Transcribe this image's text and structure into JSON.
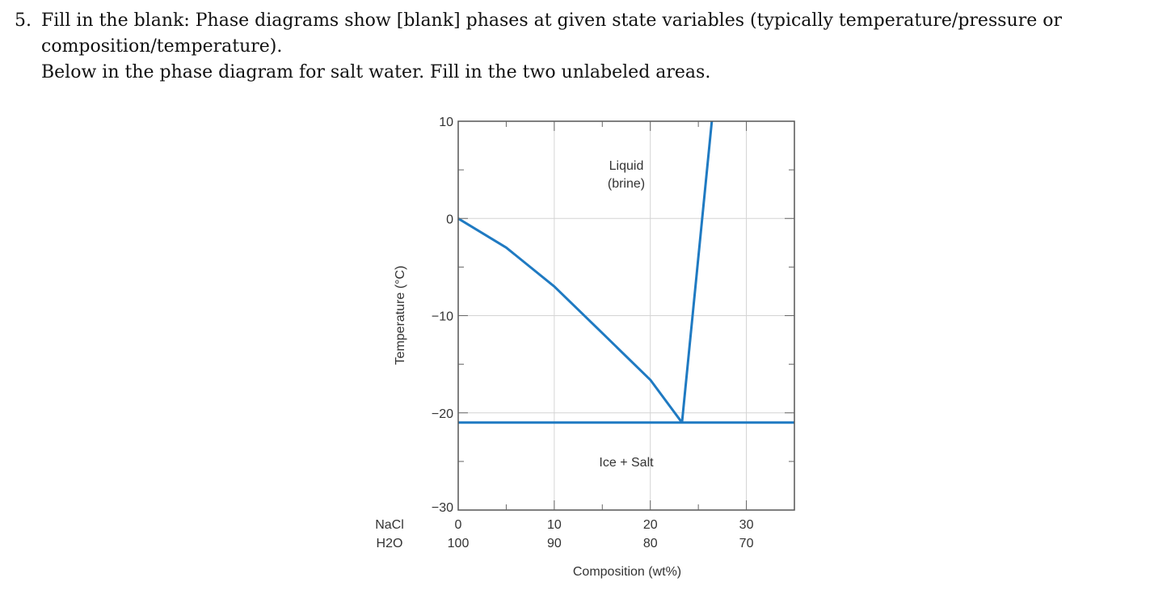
{
  "question": {
    "number": "5.",
    "line1": "Fill in the blank: Phase diagrams show [blank] phases at given state variables (typically temperature/pressure or",
    "line2": "composition/temperature).",
    "line3": "Below in the phase diagram for salt water. Fill in the two unlabeled areas."
  },
  "chart_data": {
    "type": "line",
    "ylabel": "Temperature (°C)",
    "xlabel": "Composition (wt%)",
    "ylim": [
      -30,
      10
    ],
    "xlim": [
      0,
      35
    ],
    "yticks": [
      "10",
      "0",
      "−10",
      "−20",
      "−30"
    ],
    "xticks_nacl": [
      "0",
      "10",
      "20",
      "30"
    ],
    "xticks_h2o": [
      "100",
      "90",
      "80",
      "70"
    ],
    "row_label_top": "NaCl",
    "row_label_bottom": "H2O",
    "grid": true,
    "region_labels": [
      {
        "text_line1": "Liquid",
        "text_line2": "(brine)",
        "x": 17.5,
        "y": 5
      },
      {
        "text_line1": "Ice + Salt",
        "text_line2": "",
        "x": 17.5,
        "y": -25
      }
    ],
    "series": [
      {
        "values": [
          [
            0,
            0
          ],
          [
            5,
            -3
          ],
          [
            10,
            -7
          ],
          [
            15,
            -11.8
          ],
          [
            20,
            -16.6
          ],
          [
            23.3,
            -21
          ]
        ]
      },
      {
        "values": [
          [
            23.3,
            -21
          ],
          [
            26.4,
            10
          ]
        ]
      },
      {
        "values": [
          [
            0,
            -21
          ],
          [
            35,
            -21
          ]
        ]
      }
    ],
    "line_color": "#1f7ac2",
    "grid_color": "#d4d4d4"
  }
}
